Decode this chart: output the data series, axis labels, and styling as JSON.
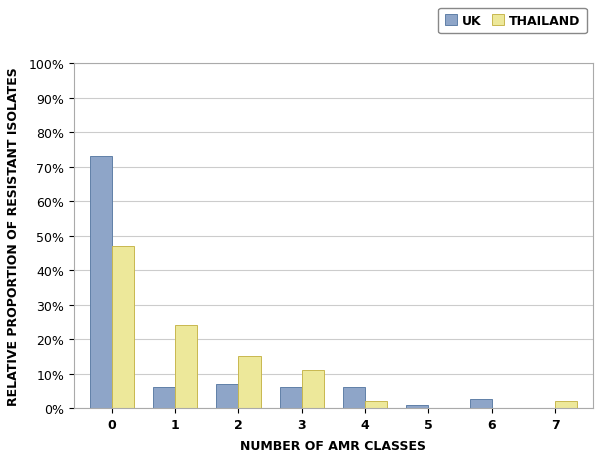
{
  "categories": [
    0,
    1,
    2,
    3,
    4,
    5,
    6,
    7
  ],
  "uk_values": [
    73,
    6,
    7,
    6,
    6,
    1,
    2.5,
    0
  ],
  "thai_values": [
    47,
    24,
    15,
    11,
    2,
    0,
    0,
    2
  ],
  "uk_color": "#8EA5C8",
  "thai_color": "#EDE89A",
  "uk_edge_color": "#6080A8",
  "thai_edge_color": "#C8B850",
  "xlabel": "NUMBER OF AMR CLASSES",
  "ylabel": "RELATIVE PROPORTION OF RESISTANT ISOLATES",
  "ylim": [
    0,
    100
  ],
  "yticks": [
    0,
    10,
    20,
    30,
    40,
    50,
    60,
    70,
    80,
    90,
    100
  ],
  "legend_labels": [
    "UK",
    "THAILAND"
  ],
  "bar_width": 0.35,
  "background_color": "#FFFFFF",
  "grid_color": "#CCCCCC",
  "axis_label_fontsize": 9,
  "tick_fontsize": 9,
  "legend_fontsize": 9
}
